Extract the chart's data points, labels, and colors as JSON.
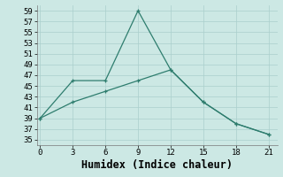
{
  "xlabel": "Humidex (Indice chaleur)",
  "line1_x": [
    0,
    3,
    6,
    9,
    12,
    15,
    18,
    21
  ],
  "line1_y": [
    39,
    46,
    46,
    59,
    48,
    42,
    38,
    36
  ],
  "line2_x": [
    0,
    3,
    6,
    9,
    12,
    15,
    18,
    21
  ],
  "line2_y": [
    39,
    42,
    44,
    46,
    48,
    42,
    38,
    36
  ],
  "line_color": "#2e7d6e",
  "bg_color": "#cce8e4",
  "grid_color_major": "#aacfcc",
  "grid_color_minor": "#c4dfdc",
  "ylim": [
    34,
    60
  ],
  "yticks": [
    35,
    37,
    39,
    41,
    43,
    45,
    47,
    49,
    51,
    53,
    55,
    57,
    59
  ],
  "xticks": [
    0,
    3,
    6,
    9,
    12,
    15,
    18,
    21
  ],
  "tick_fontsize": 6.5,
  "xlabel_fontsize": 8.5,
  "linewidth": 0.9,
  "markersize": 3.5
}
